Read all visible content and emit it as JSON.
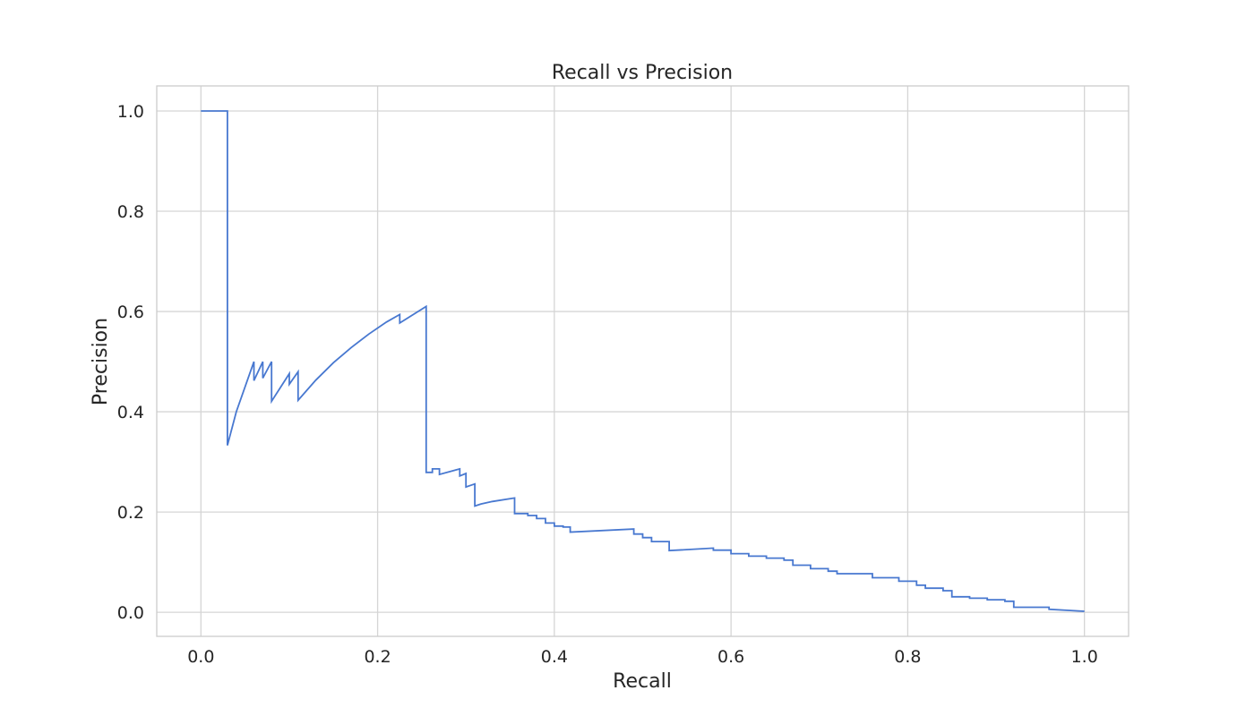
{
  "chart_data": {
    "type": "line",
    "title": "Recall vs Precision",
    "xlabel": "Recall",
    "ylabel": "Precision",
    "xlim": [
      -0.05,
      1.05
    ],
    "ylim": [
      -0.048,
      1.05
    ],
    "xticks": [
      0.0,
      0.2,
      0.4,
      0.6,
      0.8,
      1.0
    ],
    "xtick_labels": [
      "0.0",
      "0.2",
      "0.4",
      "0.6",
      "0.8",
      "1.0"
    ],
    "yticks": [
      0.0,
      0.2,
      0.4,
      0.6,
      0.8,
      1.0
    ],
    "ytick_labels": [
      "0.0",
      "0.2",
      "0.4",
      "0.6",
      "0.8",
      "1.0"
    ],
    "grid": true,
    "series": [
      {
        "color": "#4878d0",
        "x": [
          0.0,
          0.03,
          0.03,
          0.04,
          0.06,
          0.06,
          0.07,
          0.07,
          0.08,
          0.08,
          0.1,
          0.1,
          0.11,
          0.11,
          0.13,
          0.15,
          0.17,
          0.19,
          0.21,
          0.225,
          0.225,
          0.255,
          0.255,
          0.262,
          0.262,
          0.27,
          0.27,
          0.293,
          0.293,
          0.3,
          0.3,
          0.31,
          0.31,
          0.317,
          0.317,
          0.33,
          0.33,
          0.355,
          0.355,
          0.37,
          0.37,
          0.38,
          0.38,
          0.39,
          0.39,
          0.4,
          0.4,
          0.41,
          0.41,
          0.418,
          0.418,
          0.49,
          0.49,
          0.5,
          0.5,
          0.51,
          0.51,
          0.53,
          0.53,
          0.58,
          0.58,
          0.6,
          0.6,
          0.62,
          0.62,
          0.64,
          0.64,
          0.66,
          0.66,
          0.67,
          0.67,
          0.69,
          0.69,
          0.71,
          0.71,
          0.72,
          0.72,
          0.76,
          0.76,
          0.79,
          0.79,
          0.8,
          0.8,
          0.81,
          0.81,
          0.82,
          0.82,
          0.84,
          0.84,
          0.85,
          0.85,
          0.87,
          0.87,
          0.89,
          0.89,
          0.91,
          0.91,
          0.92,
          0.92,
          0.96,
          0.96,
          1.0
        ],
        "y": [
          1.0,
          1.0,
          0.333,
          0.4,
          0.5,
          0.462,
          0.5,
          0.467,
          0.5,
          0.421,
          0.476,
          0.455,
          0.48,
          0.423,
          0.463,
          0.498,
          0.528,
          0.555,
          0.579,
          0.594,
          0.577,
          0.61,
          0.279,
          0.279,
          0.286,
          0.286,
          0.275,
          0.286,
          0.272,
          0.277,
          0.25,
          0.256,
          0.212,
          0.216,
          0.216,
          0.221,
          0.221,
          0.228,
          0.197,
          0.197,
          0.193,
          0.193,
          0.187,
          0.187,
          0.178,
          0.178,
          0.172,
          0.172,
          0.17,
          0.17,
          0.16,
          0.166,
          0.156,
          0.156,
          0.149,
          0.149,
          0.141,
          0.141,
          0.123,
          0.128,
          0.124,
          0.124,
          0.117,
          0.117,
          0.112,
          0.112,
          0.108,
          0.108,
          0.104,
          0.104,
          0.094,
          0.094,
          0.087,
          0.087,
          0.082,
          0.082,
          0.077,
          0.077,
          0.069,
          0.069,
          0.062,
          0.062,
          0.062,
          0.062,
          0.054,
          0.054,
          0.048,
          0.048,
          0.043,
          0.043,
          0.031,
          0.031,
          0.028,
          0.028,
          0.025,
          0.025,
          0.022,
          0.022,
          0.01,
          0.01,
          0.006,
          0.002
        ]
      }
    ]
  }
}
